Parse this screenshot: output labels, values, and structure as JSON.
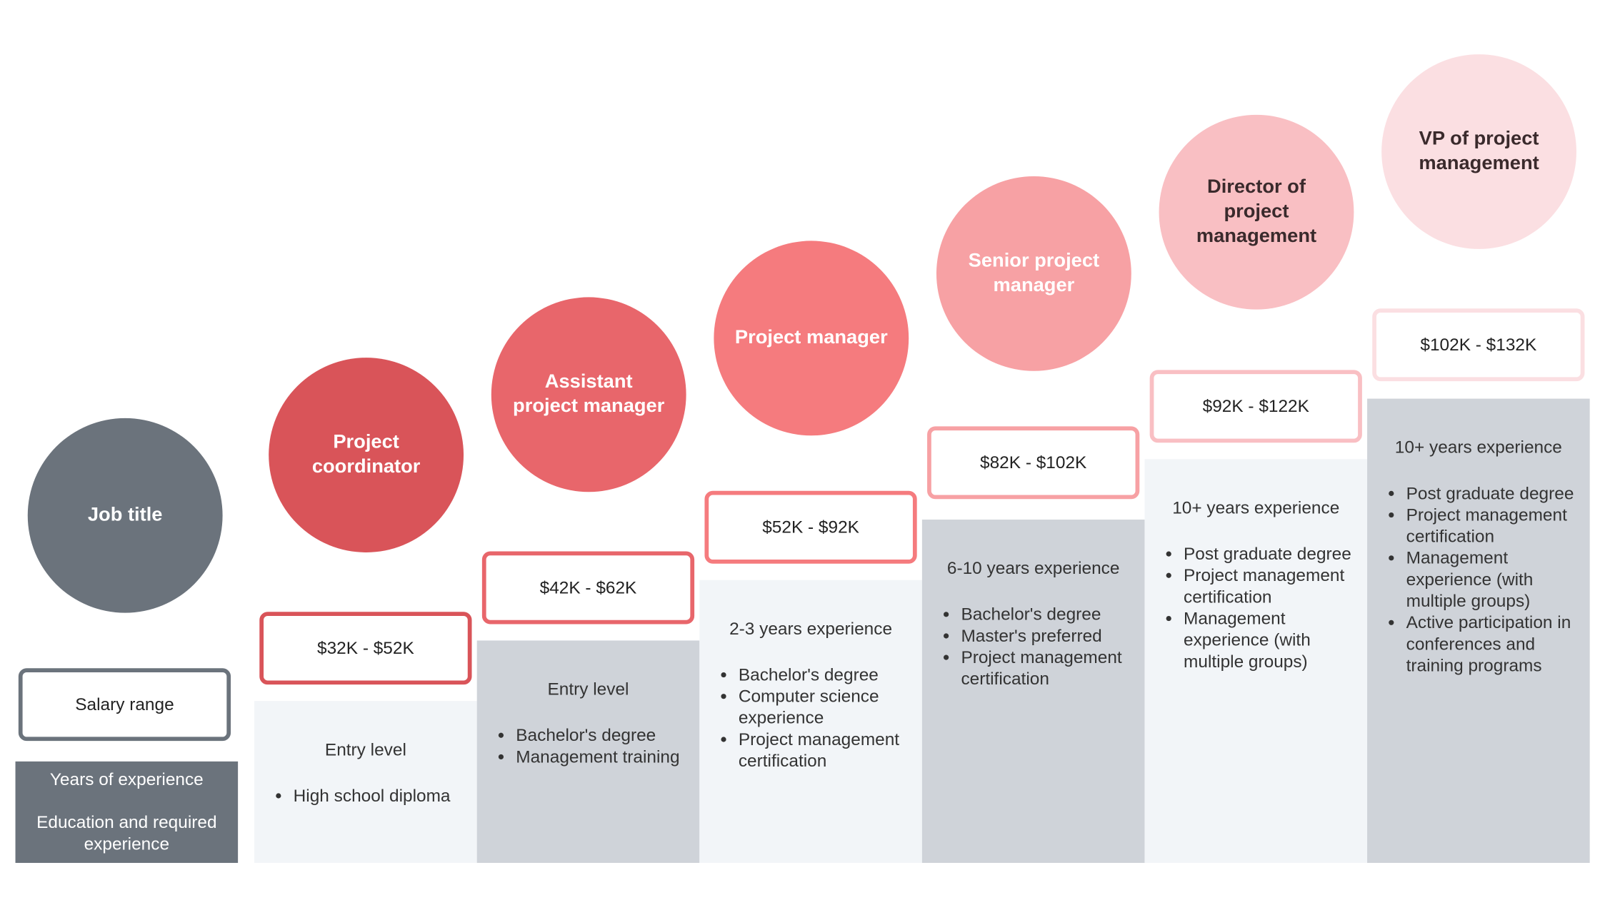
{
  "legend": {
    "job_title": "Job title",
    "salary_range": "Salary range",
    "years": "Years of experience",
    "education": "Education and required experience",
    "color": "#6b737c"
  },
  "columns": [
    {
      "title": "Project coordinator",
      "salary": "$32K - $52K",
      "years": "Entry level",
      "education": [
        "High school diploma"
      ],
      "color": "#d95459",
      "text_color": "#ffffff",
      "panel_color": "#f2f5f8"
    },
    {
      "title": "Assistant project manager",
      "salary": "$42K - $62K",
      "years": "Entry level",
      "education": [
        "Bachelor's degree",
        "Management training"
      ],
      "color": "#e8666b",
      "text_color": "#ffffff",
      "panel_color": "#cfd3d9"
    },
    {
      "title": "Project manager",
      "salary": "$52K - $92K",
      "years": "2-3 years experience",
      "education": [
        "Bachelor's degree",
        "Computer science experience",
        "Project management certification"
      ],
      "color": "#f57b7e",
      "text_color": "#ffffff",
      "panel_color": "#f2f5f8"
    },
    {
      "title": "Senior project manager",
      "salary": "$82K - $102K",
      "years": "6-10 years experience",
      "education": [
        "Bachelor's degree",
        "Master's preferred",
        "Project management certification"
      ],
      "color": "#f7a1a4",
      "text_color": "#ffffff",
      "panel_color": "#cfd3d9"
    },
    {
      "title": "Director of project management",
      "salary": "$92K - $122K",
      "years": "10+ years experience",
      "education": [
        "Post graduate degree",
        "Project management certification",
        "Management experience (with multiple groups)"
      ],
      "color": "#f9bfc3",
      "text_color": "#3a2a2c",
      "panel_color": "#f2f5f8"
    },
    {
      "title": "VP of project management",
      "salary": "$102K - $132K",
      "years": "10+ years experience",
      "education": [
        "Post graduate degree",
        "Project management certification",
        "Management experience (with multiple groups)",
        "Active participation in conferences and training programs"
      ],
      "color": "#fbdfe2",
      "text_color": "#3a2a2c",
      "panel_color": "#cfd3d9"
    }
  ]
}
